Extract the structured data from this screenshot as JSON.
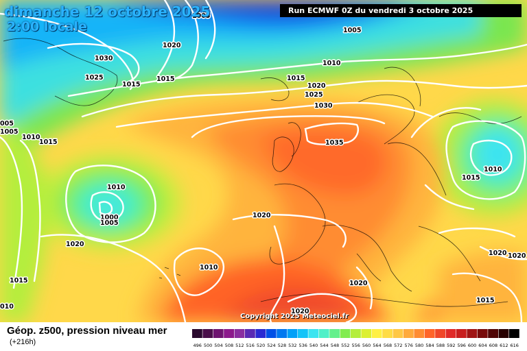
{
  "header": {
    "date_line": "dimanche 12 octobre 2025",
    "time_line": "2:00 locale",
    "run": "Run ECMWF 0Z du vendredi 3 octobre 2025"
  },
  "copyright": "Copyright 2025 Meteociel.fr",
  "footer": {
    "parameter": "Géop. z500, pression niveau mer",
    "forecast_hour": "(+216h)"
  },
  "color_scale": {
    "labels": [
      "496",
      "500",
      "504",
      "508",
      "512",
      "516",
      "520",
      "524",
      "528",
      "532",
      "536",
      "540",
      "544",
      "548",
      "552",
      "556",
      "560",
      "564",
      "568",
      "572",
      "576",
      "580",
      "584",
      "588",
      "592",
      "596",
      "600",
      "604",
      "608",
      "612",
      "616"
    ],
    "colors": [
      "#2a0a2e",
      "#4a0f4a",
      "#6e1470",
      "#8c1a8c",
      "#8a2ea0",
      "#5a2ab4",
      "#2a2ad2",
      "#0050e6",
      "#0078f0",
      "#00a0f8",
      "#14c4f8",
      "#3ce4f0",
      "#50f0c8",
      "#64f08c",
      "#82ec50",
      "#b4ee3c",
      "#dcf032",
      "#fff046",
      "#ffdc46",
      "#ffc846",
      "#ffaa3c",
      "#ff8c32",
      "#ff6428",
      "#f04628",
      "#e02a28",
      "#c81e1e",
      "#a01414",
      "#780a0a",
      "#500505",
      "#280000",
      "#000000"
    ]
  },
  "isobar_labels": [
    {
      "text": "1005"
    },
    {
      "text": "1005"
    },
    {
      "text": "1030"
    },
    {
      "text": "1020"
    },
    {
      "text": "1010"
    },
    {
      "text": "1025"
    },
    {
      "text": "1015"
    },
    {
      "text": "1015"
    },
    {
      "text": "1015"
    },
    {
      "text": "1020"
    },
    {
      "text": "1025"
    },
    {
      "text": "1030"
    },
    {
      "text": "005"
    },
    {
      "text": "1005"
    },
    {
      "text": "1010"
    },
    {
      "text": "1015"
    },
    {
      "text": "1035"
    },
    {
      "text": "1010"
    },
    {
      "text": "1015"
    },
    {
      "text": "1010"
    },
    {
      "text": "1000"
    },
    {
      "text": "1005"
    },
    {
      "text": "1020"
    },
    {
      "text": "1020"
    },
    {
      "text": "1010"
    },
    {
      "text": "1015"
    },
    {
      "text": "1020"
    },
    {
      "text": "1020"
    },
    {
      "text": "1020"
    },
    {
      "text": "1020"
    },
    {
      "text": "1015"
    },
    {
      "text": "010"
    }
  ]
}
